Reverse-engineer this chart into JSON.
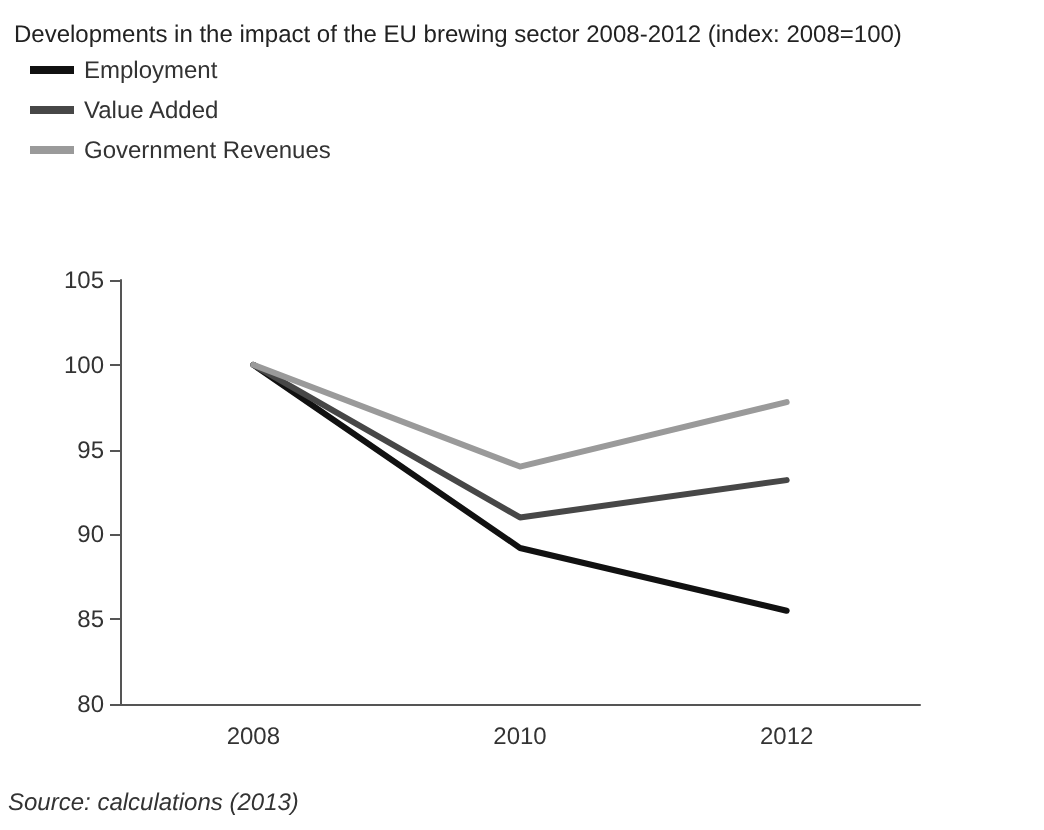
{
  "chart_data": {
    "type": "line",
    "title": "Developments in the impact of the EU brewing sector 2008-2012 (index: 2008=100)",
    "categories": [
      "2008",
      "2010",
      "2012"
    ],
    "series": [
      {
        "name": "Employment",
        "color": "#111111",
        "values": [
          100,
          89.2,
          85.5
        ]
      },
      {
        "name": "Value Added",
        "color": "#474747",
        "values": [
          100,
          91,
          93.2
        ]
      },
      {
        "name": "Government Revenues",
        "color": "#9a9a9a",
        "values": [
          100,
          94,
          97.8
        ]
      }
    ],
    "ylim": [
      80,
      105
    ],
    "yticks": [
      80,
      85,
      90,
      95,
      100,
      105
    ],
    "grid": false,
    "legend": "top left",
    "marker": "none",
    "line_style": "solid",
    "annotations": [
      "Source: calculations (2013)"
    ]
  }
}
